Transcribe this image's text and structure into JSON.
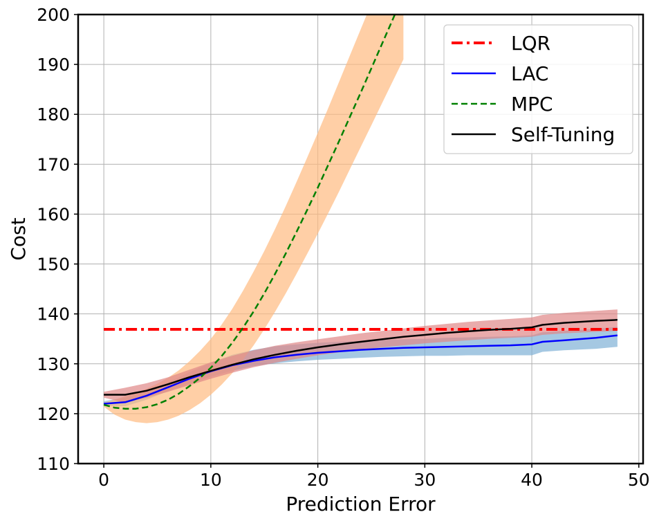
{
  "chart_data": {
    "type": "line",
    "xlabel": "Prediction Error",
    "ylabel": "Cost",
    "xlim": [
      -2.4,
      50.4
    ],
    "ylim": [
      110,
      200
    ],
    "xticks": [
      0,
      10,
      20,
      30,
      40,
      50
    ],
    "yticks": [
      110,
      120,
      130,
      140,
      150,
      160,
      170,
      180,
      190,
      200
    ],
    "grid": true,
    "legend_position": "top-right",
    "series": [
      {
        "name": "LAC",
        "color": "#0000ff",
        "style": "solid",
        "band_color": "#7fb0d6",
        "x": [
          0,
          2,
          4,
          6,
          8,
          10,
          12,
          14,
          16,
          18,
          20,
          22,
          24,
          26,
          28,
          30,
          32,
          34,
          36,
          38,
          40,
          41,
          43,
          46,
          48
        ],
        "y": [
          122,
          122.3,
          123.6,
          125.3,
          127,
          128.5,
          129.7,
          130.6,
          131.3,
          131.8,
          132.2,
          132.5,
          132.8,
          133,
          133.2,
          133.3,
          133.4,
          133.5,
          133.6,
          133.7,
          133.9,
          134.4,
          134.7,
          135.2,
          135.7
        ],
        "lower": [
          121.5,
          121.5,
          122.8,
          124.5,
          126,
          127.4,
          128.6,
          129.5,
          130.1,
          130.5,
          130.8,
          131,
          131.2,
          131.4,
          131.5,
          131.6,
          131.6,
          131.7,
          131.7,
          131.7,
          131.7,
          132.4,
          132.7,
          133,
          133.4
        ],
        "upper": [
          122.5,
          123.2,
          124.6,
          126.3,
          128.3,
          130.2,
          131.8,
          132.8,
          133.5,
          133.9,
          134.2,
          134.4,
          134.6,
          134.8,
          134.9,
          135,
          135.2,
          135.3,
          135.4,
          135.5,
          135.7,
          136.3,
          136.6,
          137,
          137.4
        ]
      },
      {
        "name": "MPC",
        "color": "#008000",
        "style": "dashed",
        "band_color": "#ffbb80",
        "x": [
          0,
          1,
          2,
          3,
          4,
          5,
          6,
          7,
          8,
          9,
          10,
          11,
          12,
          13,
          14,
          15,
          16,
          17,
          18,
          19,
          20,
          21,
          22,
          23,
          24,
          25,
          26,
          27,
          28
        ],
        "y": [
          121.8,
          121.2,
          121,
          121,
          121.3,
          121.9,
          122.8,
          124,
          125.5,
          127.2,
          129.2,
          131.5,
          134.2,
          137.2,
          140.5,
          144.1,
          148,
          152.1,
          156.4,
          160.8,
          165.3,
          170,
          174.7,
          179.5,
          184.3,
          189.2,
          194.1,
          199,
          204
        ],
        "lower": [
          121.4,
          119.8,
          118.8,
          118.3,
          118.1,
          118.3,
          118.8,
          119.6,
          120.7,
          122.1,
          123.8,
          125.8,
          128.1,
          130.8,
          133.7,
          136.9,
          140.4,
          144.1,
          148,
          152,
          156.1,
          160.3,
          164.6,
          169,
          173.4,
          177.8,
          182.2,
          186.6,
          191
        ],
        "upper": [
          122.2,
          122.8,
          123.5,
          124.2,
          125,
          126,
          127.2,
          128.7,
          130.5,
          132.6,
          135,
          137.8,
          141,
          144.6,
          148.5,
          152.6,
          157,
          161.6,
          166.4,
          171.3,
          176.3,
          181.4,
          186.6,
          191.8,
          197,
          202.2,
          207.4,
          212.6,
          217.8
        ]
      },
      {
        "name": "LQR",
        "color": "#ff0000",
        "style": "dashdot",
        "x": [
          0,
          48
        ],
        "y": [
          136.9,
          136.9
        ]
      },
      {
        "name": "Self-Tuning",
        "color": "#000000",
        "style": "solid",
        "band_color": "#e08888",
        "x": [
          0,
          2,
          4,
          6,
          8,
          10,
          12,
          14,
          16,
          18,
          20,
          22,
          24,
          26,
          28,
          30,
          32,
          34,
          36,
          38,
          40,
          41,
          43,
          46,
          48
        ],
        "y": [
          123.8,
          123.8,
          124.6,
          125.9,
          127.3,
          128.6,
          129.8,
          130.9,
          131.8,
          132.6,
          133.3,
          133.9,
          134.4,
          134.9,
          135.4,
          135.8,
          136.2,
          136.5,
          136.8,
          137,
          137.3,
          137.8,
          138.2,
          138.6,
          138.8
        ],
        "lower": [
          123.2,
          122.2,
          123.2,
          124.4,
          125.7,
          127,
          128.2,
          129.3,
          130.2,
          131,
          131.7,
          132.3,
          132.8,
          133.3,
          133.7,
          134.1,
          134.4,
          134.7,
          135,
          135.2,
          135.4,
          135.8,
          136.1,
          136.4,
          136.6
        ],
        "upper": [
          124.4,
          125.2,
          126.1,
          127.3,
          128.8,
          130.3,
          131.6,
          132.7,
          133.6,
          134.3,
          134.9,
          135.5,
          136.1,
          136.6,
          137.1,
          137.6,
          138,
          138.4,
          138.7,
          139,
          139.3,
          139.8,
          140.2,
          140.6,
          140.9
        ]
      }
    ]
  }
}
